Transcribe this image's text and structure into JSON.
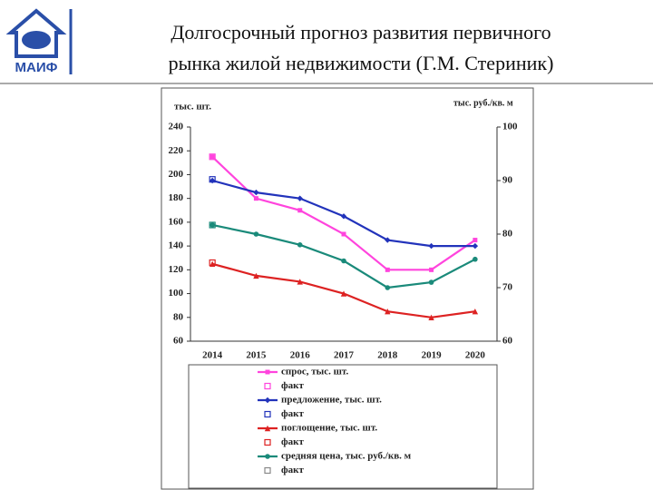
{
  "header": {
    "logo_text": "МАИФ",
    "title_lines": [
      "Долгосрочный прогноз развития первичного",
      "рынка жилой недвижимости (Г.М. Стериник)"
    ]
  },
  "chart_data": {
    "type": "line",
    "y_label": "тыс. шт.",
    "y2_label": "тыс. руб./кв. м",
    "categories": [
      "2014",
      "2015",
      "2016",
      "2017",
      "2018",
      "2019",
      "2020"
    ],
    "ylim": [
      60,
      240
    ],
    "yticks": [
      60,
      80,
      100,
      120,
      140,
      160,
      180,
      200,
      220,
      240
    ],
    "y2lim": [
      60,
      100
    ],
    "y2ticks": [
      60,
      70,
      80,
      90,
      100
    ],
    "grid": false,
    "series": [
      {
        "name": "спрос, тыс. шт.",
        "color": "#ff44dd",
        "marker": "square",
        "line": true,
        "values": [
          215,
          180,
          170,
          150,
          120,
          120,
          145
        ]
      },
      {
        "name": "факт",
        "color": "#ff44dd",
        "marker": "hollow-square",
        "line": false,
        "values": [
          215,
          null,
          null,
          null,
          null,
          null,
          null
        ]
      },
      {
        "name": "предложение, тыс. шт.",
        "color": "#2233bb",
        "marker": "diamond",
        "line": true,
        "values": [
          195,
          185,
          180,
          165,
          145,
          140,
          140
        ]
      },
      {
        "name": "факт",
        "color": "#2233bb",
        "marker": "hollow-square",
        "line": false,
        "values": [
          196,
          null,
          null,
          null,
          null,
          null,
          null
        ]
      },
      {
        "name": "поглощение, тыс. шт.",
        "color": "#dd2222",
        "marker": "triangle",
        "line": true,
        "values": [
          125,
          115,
          110,
          100,
          85,
          80,
          85
        ]
      },
      {
        "name": "факт",
        "color": "#dd2222",
        "marker": "hollow-square",
        "line": false,
        "values": [
          126,
          null,
          null,
          null,
          null,
          null,
          null
        ]
      },
      {
        "name": "средняя цена, тыс. руб./кв. м",
        "color": "#1a8a7a",
        "marker": "circle",
        "line": true,
        "axis": "y2",
        "values": [
          81.7,
          80,
          78,
          75,
          70,
          71,
          75.3
        ]
      },
      {
        "name": "факт",
        "color": "#1a8a7a",
        "marker": "hollow-square",
        "line": false,
        "axis": "y2",
        "values": [
          81.7,
          null,
          null,
          null,
          null,
          null,
          null
        ]
      }
    ]
  }
}
